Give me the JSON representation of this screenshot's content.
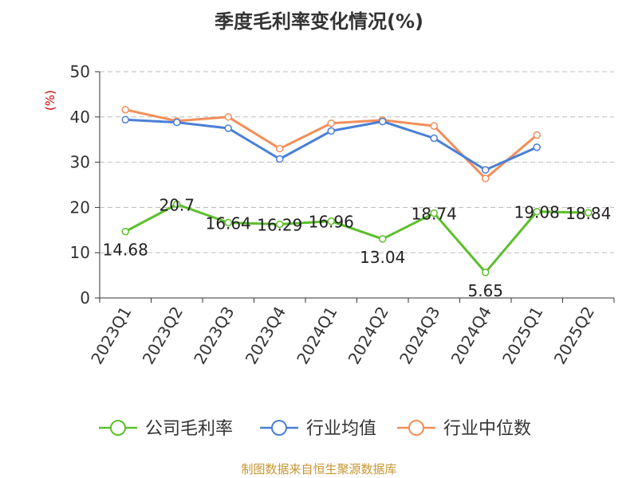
{
  "chart_data": {
    "type": "line",
    "title": "季度毛利率变化情况(%)",
    "ylabel": "(%)",
    "xlabel": "",
    "ylim": [
      0,
      50
    ],
    "yticks": [
      0,
      10,
      20,
      30,
      40,
      50
    ],
    "grid": true,
    "legend_position": "bottom",
    "categories": [
      "2023Q1",
      "2023Q2",
      "2023Q3",
      "2023Q4",
      "2024Q1",
      "2024Q2",
      "2024Q3",
      "2024Q4",
      "2025Q1",
      "2025Q2"
    ],
    "series": [
      {
        "name": "公司毛利率",
        "color": "#5cbf2a",
        "values": [
          14.68,
          20.7,
          16.64,
          16.29,
          16.96,
          13.04,
          18.74,
          5.65,
          19.08,
          18.84
        ],
        "labels": [
          "14.68",
          "20.7",
          "16.64",
          "16.29",
          "16.96",
          "13.04",
          "18.74",
          "5.65",
          "19.08",
          "18.84"
        ],
        "show_labels": true
      },
      {
        "name": "行业均值",
        "color": "#4a7fd6",
        "values": [
          39.4,
          38.8,
          37.5,
          30.7,
          36.9,
          39.0,
          35.3,
          28.3,
          33.3,
          null
        ],
        "show_labels": false
      },
      {
        "name": "行业中位数",
        "color": "#f28e5a",
        "values": [
          41.6,
          39.1,
          40.0,
          33.0,
          38.6,
          39.3,
          38.0,
          26.4,
          36.0,
          null
        ],
        "show_labels": false
      }
    ]
  },
  "footer": {
    "source": "制图数据来自恒生聚源数据库"
  }
}
